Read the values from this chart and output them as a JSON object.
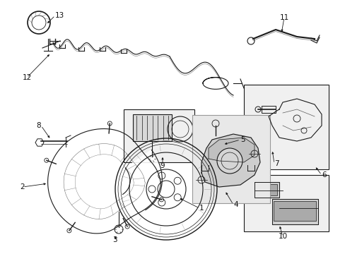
{
  "bg_color": "#ffffff",
  "fig_width": 4.89,
  "fig_height": 3.6,
  "dpi": 100,
  "line_color": "#1a1a1a",
  "text_color": "#111111",
  "font_size": 7.5
}
